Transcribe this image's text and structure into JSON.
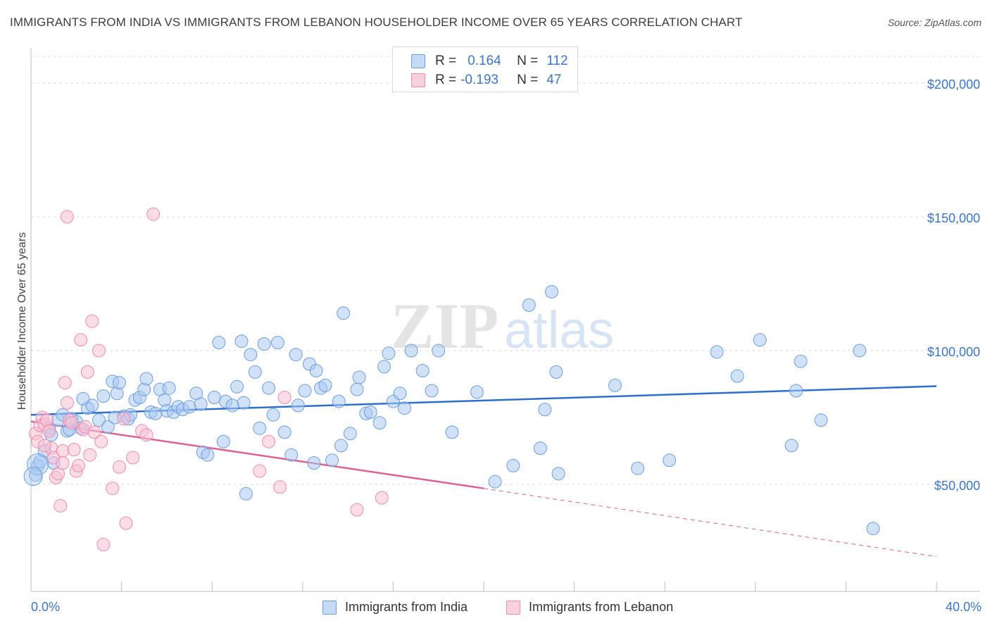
{
  "header": {
    "title": "IMMIGRANTS FROM INDIA VS IMMIGRANTS FROM LEBANON HOUSEHOLDER INCOME OVER 65 YEARS CORRELATION CHART",
    "source": "Source: ZipAtlas.com"
  },
  "legend": {
    "india": {
      "r_label": "R =",
      "r_value": "0.164",
      "n_label": "N =",
      "n_value": "112"
    },
    "lebanon": {
      "r_label": "R =",
      "r_value": "-0.193",
      "n_label": "N =",
      "n_value": "47"
    }
  },
  "bottom_legend": {
    "india": "Immigrants from India",
    "lebanon": "Immigrants from Lebanon"
  },
  "watermark": {
    "zip": "ZIP",
    "atlas": "atlas"
  },
  "colors": {
    "india": "#6d9fe0",
    "india_fill": "#a9c8f2",
    "india_line": "#2e6fcc",
    "lebanon": "#f08cae",
    "lebanon_fill": "#f7c1d3",
    "lebanon_line": "#e0608f",
    "tick": "#3b76c9"
  },
  "chart_data": {
    "type": "scatter",
    "title": "IMMIGRANTS FROM INDIA VS IMMIGRANTS FROM LEBANON HOUSEHOLDER INCOME OVER 65 YEARS CORRELATION CHART",
    "xlabel": "",
    "ylabel": "Householder Income Over 65 years",
    "xlim": [
      0,
      40
    ],
    "ylim": [
      10000,
      210000
    ],
    "x_tick_labels": [
      "0.0%",
      "40.0%"
    ],
    "y_ticks": [
      50000,
      100000,
      150000,
      200000
    ],
    "y_tick_labels": [
      "$50,000",
      "$100,000",
      "$150,000",
      "$200,000"
    ],
    "grid": "horizontal dashed",
    "series": [
      {
        "name": "Immigrants from India",
        "trend": {
          "x": [
            0,
            40
          ],
          "y": [
            76000,
            86700
          ]
        },
        "points": [
          [
            0.3,
            57000
          ],
          [
            0.4,
            58500
          ],
          [
            0.6,
            62500
          ],
          [
            0.8,
            71000
          ],
          [
            0.9,
            68500
          ],
          [
            1.0,
            58000
          ],
          [
            1.2,
            74000
          ],
          [
            1.4,
            76000
          ],
          [
            1.6,
            70000
          ],
          [
            1.8,
            74500
          ],
          [
            2.0,
            73500
          ],
          [
            2.2,
            71000
          ],
          [
            2.5,
            78500
          ],
          [
            2.7,
            79500
          ],
          [
            3.0,
            74000
          ],
          [
            3.2,
            83000
          ],
          [
            3.4,
            71500
          ],
          [
            3.6,
            88500
          ],
          [
            3.8,
            84000
          ],
          [
            3.9,
            88000
          ],
          [
            4.1,
            75500
          ],
          [
            4.3,
            74500
          ],
          [
            4.4,
            76000
          ],
          [
            4.6,
            81500
          ],
          [
            4.8,
            82500
          ],
          [
            5.0,
            85500
          ],
          [
            5.1,
            89500
          ],
          [
            5.3,
            77000
          ],
          [
            5.5,
            76500
          ],
          [
            5.7,
            85500
          ],
          [
            5.9,
            81500
          ],
          [
            6.0,
            77500
          ],
          [
            6.3,
            77000
          ],
          [
            6.5,
            79000
          ],
          [
            6.7,
            78000
          ],
          [
            7.0,
            79000
          ],
          [
            7.3,
            84000
          ],
          [
            7.5,
            80000
          ],
          [
            7.6,
            62000
          ],
          [
            7.8,
            61000
          ],
          [
            8.1,
            82500
          ],
          [
            8.3,
            103000
          ],
          [
            8.5,
            66000
          ],
          [
            8.6,
            81000
          ],
          [
            8.9,
            79500
          ],
          [
            9.1,
            86500
          ],
          [
            9.3,
            103500
          ],
          [
            9.5,
            46500
          ],
          [
            9.7,
            98500
          ],
          [
            9.9,
            92000
          ],
          [
            10.1,
            71000
          ],
          [
            10.3,
            102500
          ],
          [
            10.5,
            86000
          ],
          [
            10.7,
            76000
          ],
          [
            10.9,
            103000
          ],
          [
            11.2,
            69500
          ],
          [
            11.5,
            61000
          ],
          [
            11.7,
            98500
          ],
          [
            11.8,
            79500
          ],
          [
            12.1,
            85000
          ],
          [
            12.3,
            95000
          ],
          [
            12.5,
            58000
          ],
          [
            12.6,
            92500
          ],
          [
            12.8,
            86000
          ],
          [
            13.0,
            87000
          ],
          [
            13.3,
            59000
          ],
          [
            13.6,
            81000
          ],
          [
            13.7,
            64500
          ],
          [
            13.8,
            114000
          ],
          [
            14.1,
            69000
          ],
          [
            14.4,
            85500
          ],
          [
            14.5,
            90000
          ],
          [
            14.8,
            76500
          ],
          [
            15.0,
            77000
          ],
          [
            15.4,
            73000
          ],
          [
            15.6,
            94000
          ],
          [
            15.8,
            99000
          ],
          [
            16.0,
            81000
          ],
          [
            16.3,
            84000
          ],
          [
            16.8,
            100000
          ],
          [
            17.3,
            92500
          ],
          [
            17.7,
            85000
          ],
          [
            18.0,
            100000
          ],
          [
            18.6,
            69500
          ],
          [
            19.7,
            84500
          ],
          [
            20.5,
            51000
          ],
          [
            21.3,
            57000
          ],
          [
            22.0,
            117000
          ],
          [
            22.5,
            63500
          ],
          [
            22.7,
            78000
          ],
          [
            23.0,
            122000
          ],
          [
            23.2,
            92000
          ],
          [
            23.3,
            54000
          ],
          [
            25.8,
            87000
          ],
          [
            26.8,
            56000
          ],
          [
            28.2,
            59000
          ],
          [
            30.3,
            99500
          ],
          [
            31.2,
            90500
          ],
          [
            32.2,
            104000
          ],
          [
            33.6,
            64500
          ],
          [
            33.8,
            85000
          ],
          [
            34.0,
            96000
          ],
          [
            34.9,
            74000
          ],
          [
            36.6,
            100000
          ],
          [
            37.2,
            33500
          ],
          [
            0.2,
            53500
          ],
          [
            1.7,
            70500
          ],
          [
            2.3,
            82000
          ],
          [
            3.7,
            75000
          ],
          [
            6.1,
            86000
          ],
          [
            9.4,
            80500
          ],
          [
            16.5,
            78500
          ]
        ]
      },
      {
        "name": "Immigrants from Lebanon",
        "trend": {
          "x": [
            0,
            20
          ],
          "y": [
            73500,
            48500
          ],
          "dashed_to": {
            "x": 40,
            "y": 23000
          }
        },
        "points": [
          [
            0.2,
            69000
          ],
          [
            0.3,
            66000
          ],
          [
            0.4,
            72000
          ],
          [
            0.5,
            75000
          ],
          [
            0.6,
            72500
          ],
          [
            0.7,
            74000
          ],
          [
            0.8,
            70000
          ],
          [
            0.9,
            63500
          ],
          [
            1.0,
            60000
          ],
          [
            1.1,
            52500
          ],
          [
            1.2,
            54000
          ],
          [
            1.3,
            42000
          ],
          [
            1.4,
            62500
          ],
          [
            1.5,
            88000
          ],
          [
            1.6,
            80500
          ],
          [
            1.7,
            74000
          ],
          [
            1.8,
            73000
          ],
          [
            1.9,
            63000
          ],
          [
            2.0,
            55000
          ],
          [
            2.1,
            57000
          ],
          [
            2.2,
            104000
          ],
          [
            2.3,
            70500
          ],
          [
            2.4,
            71500
          ],
          [
            2.5,
            92000
          ],
          [
            2.6,
            61000
          ],
          [
            2.7,
            111000
          ],
          [
            2.8,
            69500
          ],
          [
            3.0,
            100000
          ],
          [
            3.1,
            66000
          ],
          [
            3.2,
            27500
          ],
          [
            3.6,
            48500
          ],
          [
            3.9,
            56500
          ],
          [
            4.1,
            74500
          ],
          [
            4.2,
            35500
          ],
          [
            4.5,
            60000
          ],
          [
            4.9,
            70000
          ],
          [
            5.1,
            68500
          ],
          [
            5.4,
            151000
          ],
          [
            10.1,
            55000
          ],
          [
            10.5,
            66000
          ],
          [
            11.0,
            49000
          ],
          [
            11.2,
            82500
          ],
          [
            14.4,
            40500
          ],
          [
            15.5,
            45000
          ],
          [
            1.6,
            150000
          ],
          [
            0.6,
            64500
          ],
          [
            1.4,
            58000
          ]
        ]
      }
    ]
  }
}
